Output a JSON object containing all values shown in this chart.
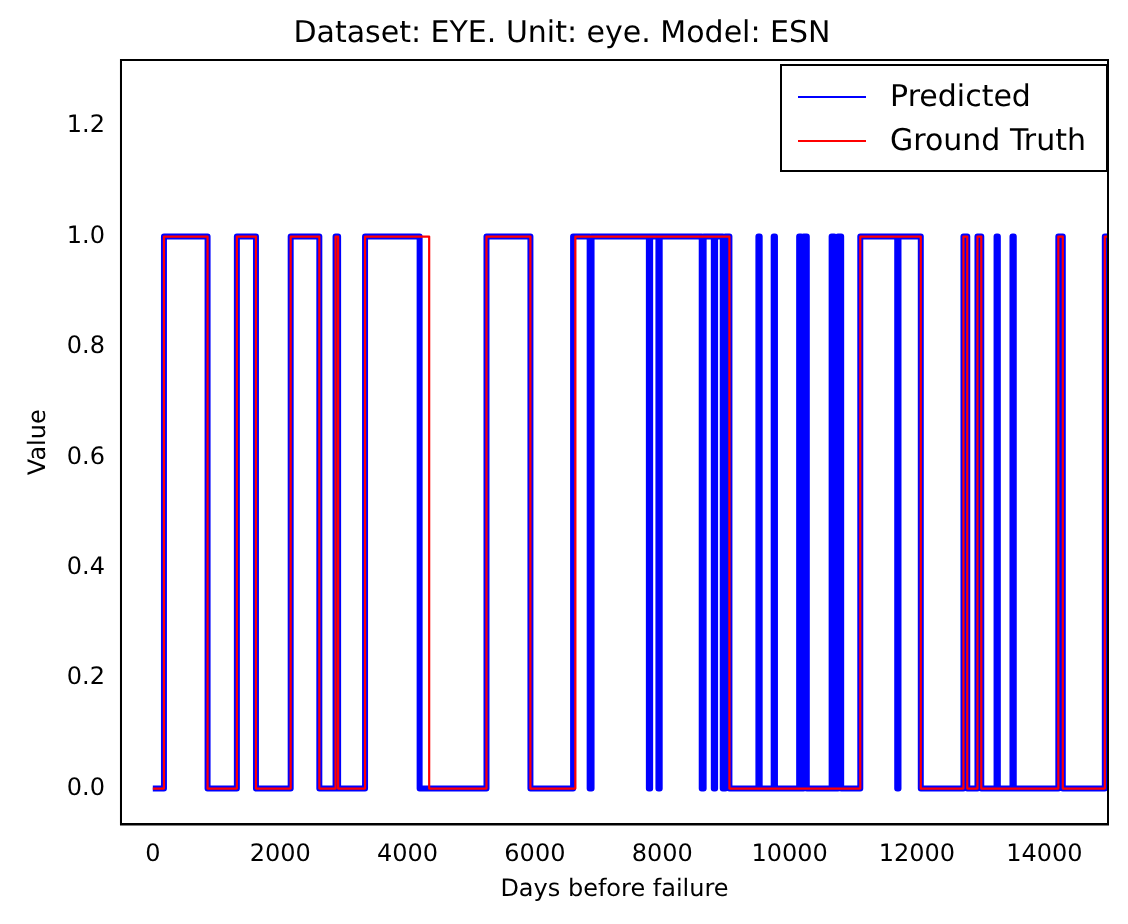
{
  "chart_data": {
    "type": "step",
    "title": "Dataset: EYE. Unit: eye. Model: ESN",
    "xlabel": "Days before failure",
    "ylabel": "Value",
    "xlim": [
      -500,
      15000
    ],
    "xticks": [
      0,
      2000,
      4000,
      6000,
      8000,
      10000,
      12000,
      14000
    ],
    "ylim": [
      -0.065,
      1.32
    ],
    "yticks": [
      {
        "value": 0,
        "label": "0.0"
      },
      0.2,
      0.4,
      0.6,
      0.8,
      {
        "value": 1,
        "label": "1.0"
      },
      1.2
    ],
    "grid": false,
    "legend": "top right",
    "line_style": "solid",
    "marker": "none",
    "series": [
      {
        "name": "Predicted",
        "color": "#0000ff",
        "x": [
          0,
          175,
          860,
          1320,
          1620,
          2165,
          2615,
          2870,
          2910,
          3333,
          4190,
          5240,
          5930,
          6600,
          6860,
          6890,
          7790,
          7810,
          7940,
          7960,
          8620,
          8650,
          8810,
          8830,
          8950,
          8990,
          9055,
          9510,
          9530,
          9750,
          9770,
          10150,
          10180,
          10220,
          10270,
          10660,
          10700,
          10760,
          10810,
          11110,
          11690,
          11710,
          12060,
          12730,
          12790,
          12950,
          13010,
          13250,
          13270,
          13500,
          13520,
          14220,
          14290,
          14950,
          15000
        ],
        "values": [
          0,
          1,
          0,
          1,
          0,
          1,
          0,
          1,
          0,
          1,
          0,
          1,
          0,
          1,
          0,
          1,
          0,
          1,
          0,
          1,
          0,
          1,
          0,
          1,
          0,
          1,
          0,
          1,
          0,
          1,
          0,
          1,
          0,
          1,
          0,
          1,
          0,
          1,
          0,
          1,
          0,
          1,
          0,
          1,
          0,
          1,
          0,
          1,
          0,
          1,
          0,
          1,
          0,
          1,
          1
        ]
      },
      {
        "name": "Ground Truth",
        "color": "#ff0000",
        "x": [
          0,
          175,
          860,
          1320,
          1620,
          2165,
          2615,
          2870,
          2910,
          3333,
          4340,
          5240,
          5930,
          6635,
          9055,
          11110,
          12060,
          12730,
          12790,
          12950,
          13010,
          14220,
          14290,
          14950,
          15000
        ],
        "values": [
          0,
          1,
          0,
          1,
          0,
          1,
          0,
          1,
          0,
          1,
          0,
          1,
          0,
          1,
          0,
          1,
          0,
          1,
          0,
          1,
          0,
          1,
          0,
          1,
          1
        ]
      }
    ]
  }
}
